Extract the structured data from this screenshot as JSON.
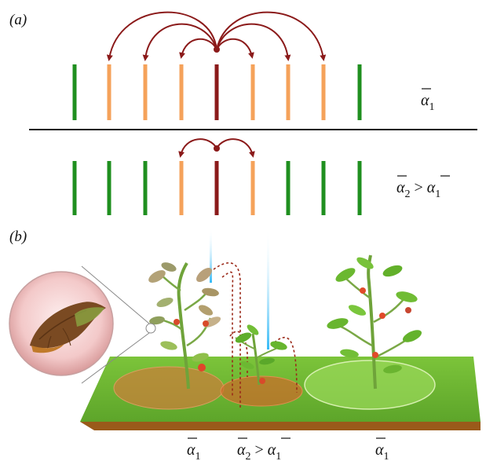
{
  "panel_a": {
    "label": "(a)",
    "colors": {
      "healthy": "#1f8f1f",
      "affected": "#f5a25a",
      "source": "#8b1a1a",
      "arrow": "#8b1a1a"
    },
    "top_row": {
      "bars": [
        "healthy",
        "affected",
        "affected",
        "affected",
        "source",
        "affected",
        "affected",
        "affected",
        "healthy"
      ],
      "alpha_label": {
        "base": "α",
        "sub": "1"
      }
    },
    "bottom_row": {
      "bars": [
        "healthy",
        "healthy",
        "healthy",
        "affected",
        "source",
        "affected",
        "healthy",
        "healthy",
        "healthy"
      ],
      "alpha_label": {
        "left": "α",
        "left_sub": "2",
        "op": " > ",
        "right": "α",
        "right_sub": "1"
      }
    }
  },
  "panel_b": {
    "label": "(b)",
    "captions": {
      "left": {
        "base": "α",
        "sub": "1"
      },
      "middle": {
        "left": "α",
        "left_sub": "2",
        "op": " > ",
        "right": "α",
        "right_sub": "1"
      },
      "right": {
        "base": "α",
        "sub": "1"
      }
    },
    "icons": [
      "diseased-plant-icon",
      "small-plant-icon",
      "healthy-tomato-plant-icon",
      "leaf-closeup-icon",
      "light-beam-icon"
    ]
  }
}
